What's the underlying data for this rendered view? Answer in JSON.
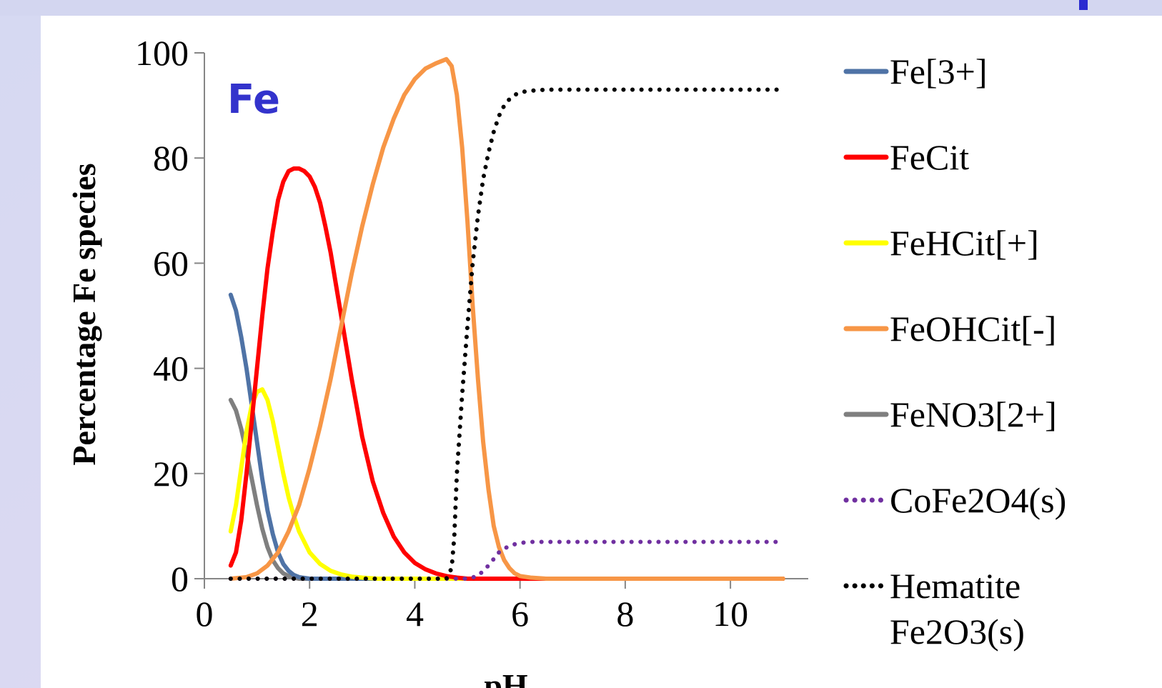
{
  "chart_data": {
    "type": "line",
    "title": "",
    "annotation": "Fe",
    "annotation_color": "#3333cc",
    "xlabel": "pH",
    "ylabel": "Percentage Fe species",
    "xlim": [
      0,
      11
    ],
    "ylim": [
      0,
      100
    ],
    "xticks": [
      0,
      2,
      4,
      6,
      8,
      10
    ],
    "yticks": [
      0,
      20,
      40,
      60,
      80,
      100
    ],
    "grid": false,
    "legend_position": "right",
    "series": [
      {
        "name": "Fe[3+]",
        "color": "#4f73a6",
        "dash": "solid",
        "x": [
          0.5,
          0.6,
          0.7,
          0.8,
          0.9,
          1.0,
          1.1,
          1.2,
          1.3,
          1.4,
          1.5,
          1.6,
          1.7,
          1.8,
          2.0,
          2.5,
          11.0
        ],
        "y": [
          54,
          51,
          46,
          40,
          33,
          26,
          19,
          13,
          8.5,
          5,
          2.8,
          1.5,
          0.7,
          0.3,
          0,
          0,
          0
        ]
      },
      {
        "name": "FeCit",
        "color": "#ff0000",
        "dash": "solid",
        "x": [
          0.5,
          0.6,
          0.7,
          0.8,
          0.9,
          1.0,
          1.1,
          1.2,
          1.3,
          1.4,
          1.5,
          1.6,
          1.7,
          1.8,
          1.9,
          2.0,
          2.1,
          2.2,
          2.3,
          2.4,
          2.5,
          2.6,
          2.7,
          2.8,
          2.9,
          3.0,
          3.2,
          3.4,
          3.6,
          3.8,
          4.0,
          4.2,
          4.4,
          4.6,
          4.8,
          5.0,
          5.5,
          11.0
        ],
        "y": [
          2.5,
          5,
          11,
          20,
          30,
          40,
          50,
          59,
          66,
          72,
          75.5,
          77.5,
          78,
          78,
          77.5,
          76.5,
          74.5,
          71.5,
          67,
          62,
          56,
          50,
          44,
          38,
          32.5,
          27,
          18.5,
          12.5,
          8,
          5,
          3,
          1.8,
          1,
          0.5,
          0.2,
          0,
          0,
          0
        ]
      },
      {
        "name": "FeHCit[+]",
        "color": "#ffff00",
        "dash": "solid",
        "x": [
          0.5,
          0.6,
          0.7,
          0.8,
          0.9,
          1.0,
          1.1,
          1.2,
          1.3,
          1.4,
          1.5,
          1.6,
          1.7,
          1.8,
          2.0,
          2.2,
          2.4,
          2.6,
          2.8,
          3.0,
          3.3,
          3.6,
          11.0
        ],
        "y": [
          9,
          14,
          21,
          28,
          33,
          35.5,
          36,
          34,
          30,
          25,
          20,
          15.5,
          12,
          9,
          5,
          2.8,
          1.5,
          0.8,
          0.4,
          0.2,
          0,
          0,
          0
        ]
      },
      {
        "name": "FeOHCit[-]",
        "color": "#f79646",
        "dash": "solid",
        "x": [
          0.5,
          0.8,
          1.0,
          1.2,
          1.4,
          1.6,
          1.8,
          2.0,
          2.2,
          2.4,
          2.6,
          2.8,
          3.0,
          3.2,
          3.4,
          3.6,
          3.8,
          4.0,
          4.2,
          4.4,
          4.6,
          4.7,
          4.8,
          4.9,
          5.0,
          5.1,
          5.2,
          5.3,
          5.4,
          5.5,
          5.6,
          5.7,
          5.8,
          5.9,
          6.0,
          6.2,
          6.5,
          11.0
        ],
        "y": [
          0,
          0.3,
          1,
          2.5,
          5,
          9,
          14,
          21,
          29,
          38,
          48,
          58,
          67,
          75,
          82,
          87.5,
          92,
          95,
          97,
          98,
          98.8,
          97.5,
          92,
          82,
          68,
          52,
          38,
          26,
          17,
          10,
          6,
          3.5,
          2,
          1,
          0.5,
          0.2,
          0,
          0
        ]
      },
      {
        "name": "FeNO3[2+]",
        "color": "#7f7f7f",
        "dash": "solid",
        "x": [
          0.5,
          0.6,
          0.7,
          0.8,
          0.9,
          1.0,
          1.1,
          1.2,
          1.3,
          1.4,
          1.5,
          1.6,
          1.7,
          1.8,
          2.0,
          2.5,
          11.0
        ],
        "y": [
          34,
          32,
          28.5,
          24,
          19,
          14,
          9.5,
          6,
          3.5,
          2,
          1,
          0.5,
          0.2,
          0,
          0,
          0,
          0
        ]
      },
      {
        "name": "CoFe2O4(s)",
        "color": "#7030a0",
        "dash": "dotted",
        "x": [
          0.5,
          4.0,
          5.0,
          5.2,
          5.4,
          5.6,
          5.8,
          6.0,
          6.2,
          6.5,
          7.0,
          11.0
        ],
        "y": [
          0,
          0,
          0,
          0.5,
          2.5,
          5,
          6.3,
          6.8,
          7,
          7,
          7,
          7
        ]
      },
      {
        "name": "Hematite Fe2O3(s)",
        "color": "#000000",
        "dash": "dotted",
        "x": [
          0.5,
          4.6,
          4.7,
          4.75,
          4.8,
          4.9,
          5.0,
          5.1,
          5.2,
          5.3,
          5.4,
          5.5,
          5.6,
          5.7,
          5.8,
          5.9,
          6.0,
          6.2,
          6.5,
          7.0,
          11.0
        ],
        "y": [
          0,
          0,
          2,
          8,
          20,
          35,
          48,
          60,
          69,
          76,
          81,
          85,
          88,
          90,
          91.2,
          92,
          92.5,
          92.8,
          93,
          93,
          93
        ]
      }
    ]
  },
  "legend_labels": [
    [
      "Fe[3+]"
    ],
    [
      "FeCit"
    ],
    [
      "FeHCit[+]"
    ],
    [
      "FeOHCit[-]"
    ],
    [
      "FeNO3[2+]"
    ],
    [
      "CoFe2O4(s)"
    ],
    [
      "Hematite",
      "Fe2O3(s)"
    ]
  ]
}
